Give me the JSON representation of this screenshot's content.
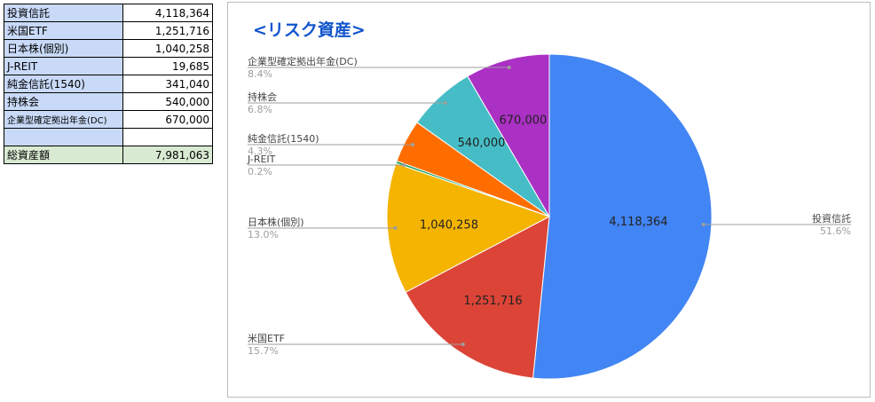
{
  "table": {
    "rows": [
      {
        "label": "投資信託",
        "value": "4,118,364"
      },
      {
        "label": "米国ETF",
        "value": "1,251,716"
      },
      {
        "label": "日本株(個別)",
        "value": "1,040,258"
      },
      {
        "label": "J-REIT",
        "value": "19,685"
      },
      {
        "label": "純金信託(1540)",
        "value": "341,040"
      },
      {
        "label": "持株会",
        "value": "540,000"
      },
      {
        "label": "企業型確定拠出年金(DC)",
        "value": "670,000"
      },
      {
        "label": "",
        "value": ""
      }
    ],
    "total": {
      "label": "総資産額",
      "value": "7,981,063"
    }
  },
  "colors": {
    "table_label_bg": "#c9daf8",
    "total_row_bg": "#d9ead3",
    "title_color": "#1155cc"
  },
  "chart_data": {
    "type": "pie",
    "title": "<リスク資産>",
    "slices": [
      {
        "label": "投資信託",
        "value": 4118364,
        "value_label": "4,118,364",
        "percent": "51.6%",
        "color": "#4285f4"
      },
      {
        "label": "米国ETF",
        "value": 1251716,
        "value_label": "1,251,716",
        "percent": "15.7%",
        "color": "#db4437"
      },
      {
        "label": "日本株(個別)",
        "value": 1040258,
        "value_label": "1,040,258",
        "percent": "13.0%",
        "color": "#f4b400"
      },
      {
        "label": "J-REIT",
        "value": 19685,
        "value_label": "",
        "percent": "0.2%",
        "color": "#0f9d58"
      },
      {
        "label": "純金信託(1540)",
        "value": 341040,
        "value_label": "",
        "percent": "4.3%",
        "color": "#ff6d00"
      },
      {
        "label": "持株会",
        "value": 540000,
        "value_label": "540,000",
        "percent": "6.8%",
        "color": "#46bdc6"
      },
      {
        "label": "企業型確定拠出年金(DC)",
        "value": 670000,
        "value_label": "670,000",
        "percent": "8.4%",
        "color": "#ab30c4"
      }
    ],
    "start": "12 o'clock",
    "direction": "clockwise",
    "legend": "labeled callouts"
  }
}
